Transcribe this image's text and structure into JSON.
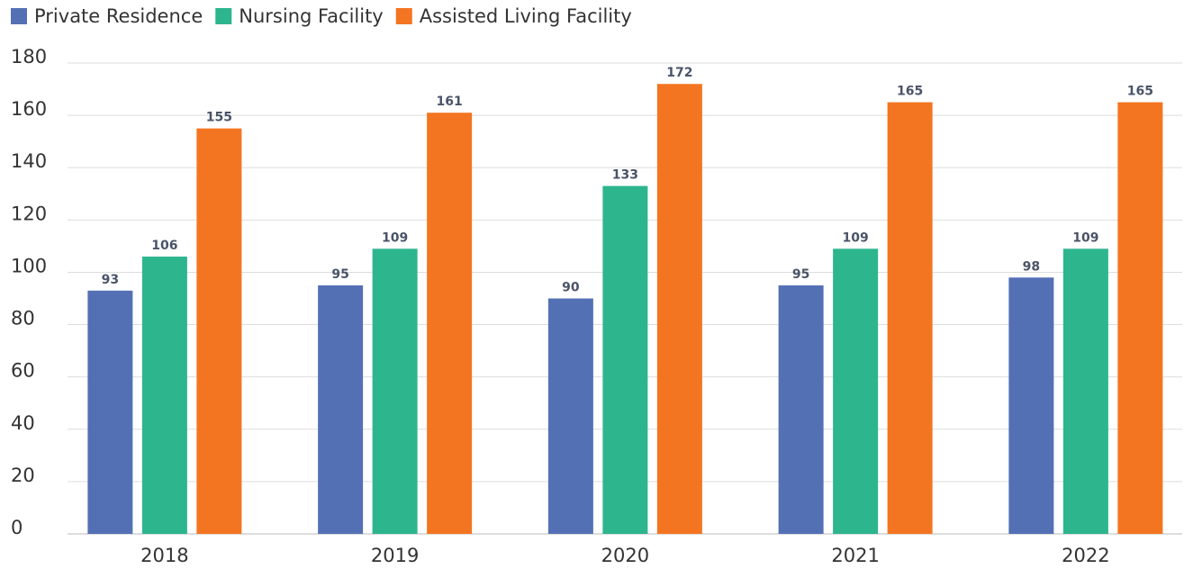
{
  "chart_data": {
    "type": "bar",
    "categories": [
      "2018",
      "2019",
      "2020",
      "2021",
      "2022"
    ],
    "series": [
      {
        "name": "Private Residence",
        "color": "#5470b5",
        "values": [
          93,
          95,
          90,
          95,
          98
        ]
      },
      {
        "name": "Nursing Facility",
        "color": "#2db58e",
        "values": [
          106,
          109,
          133,
          109,
          109
        ]
      },
      {
        "name": "Assisted Living Facility",
        "color": "#f47521",
        "values": [
          155,
          161,
          172,
          165,
          165
        ]
      }
    ],
    "ylim": [
      0,
      180
    ],
    "yticks": [
      0,
      20,
      40,
      60,
      80,
      100,
      120,
      140,
      160,
      180
    ],
    "grid": true,
    "legend": "top"
  }
}
